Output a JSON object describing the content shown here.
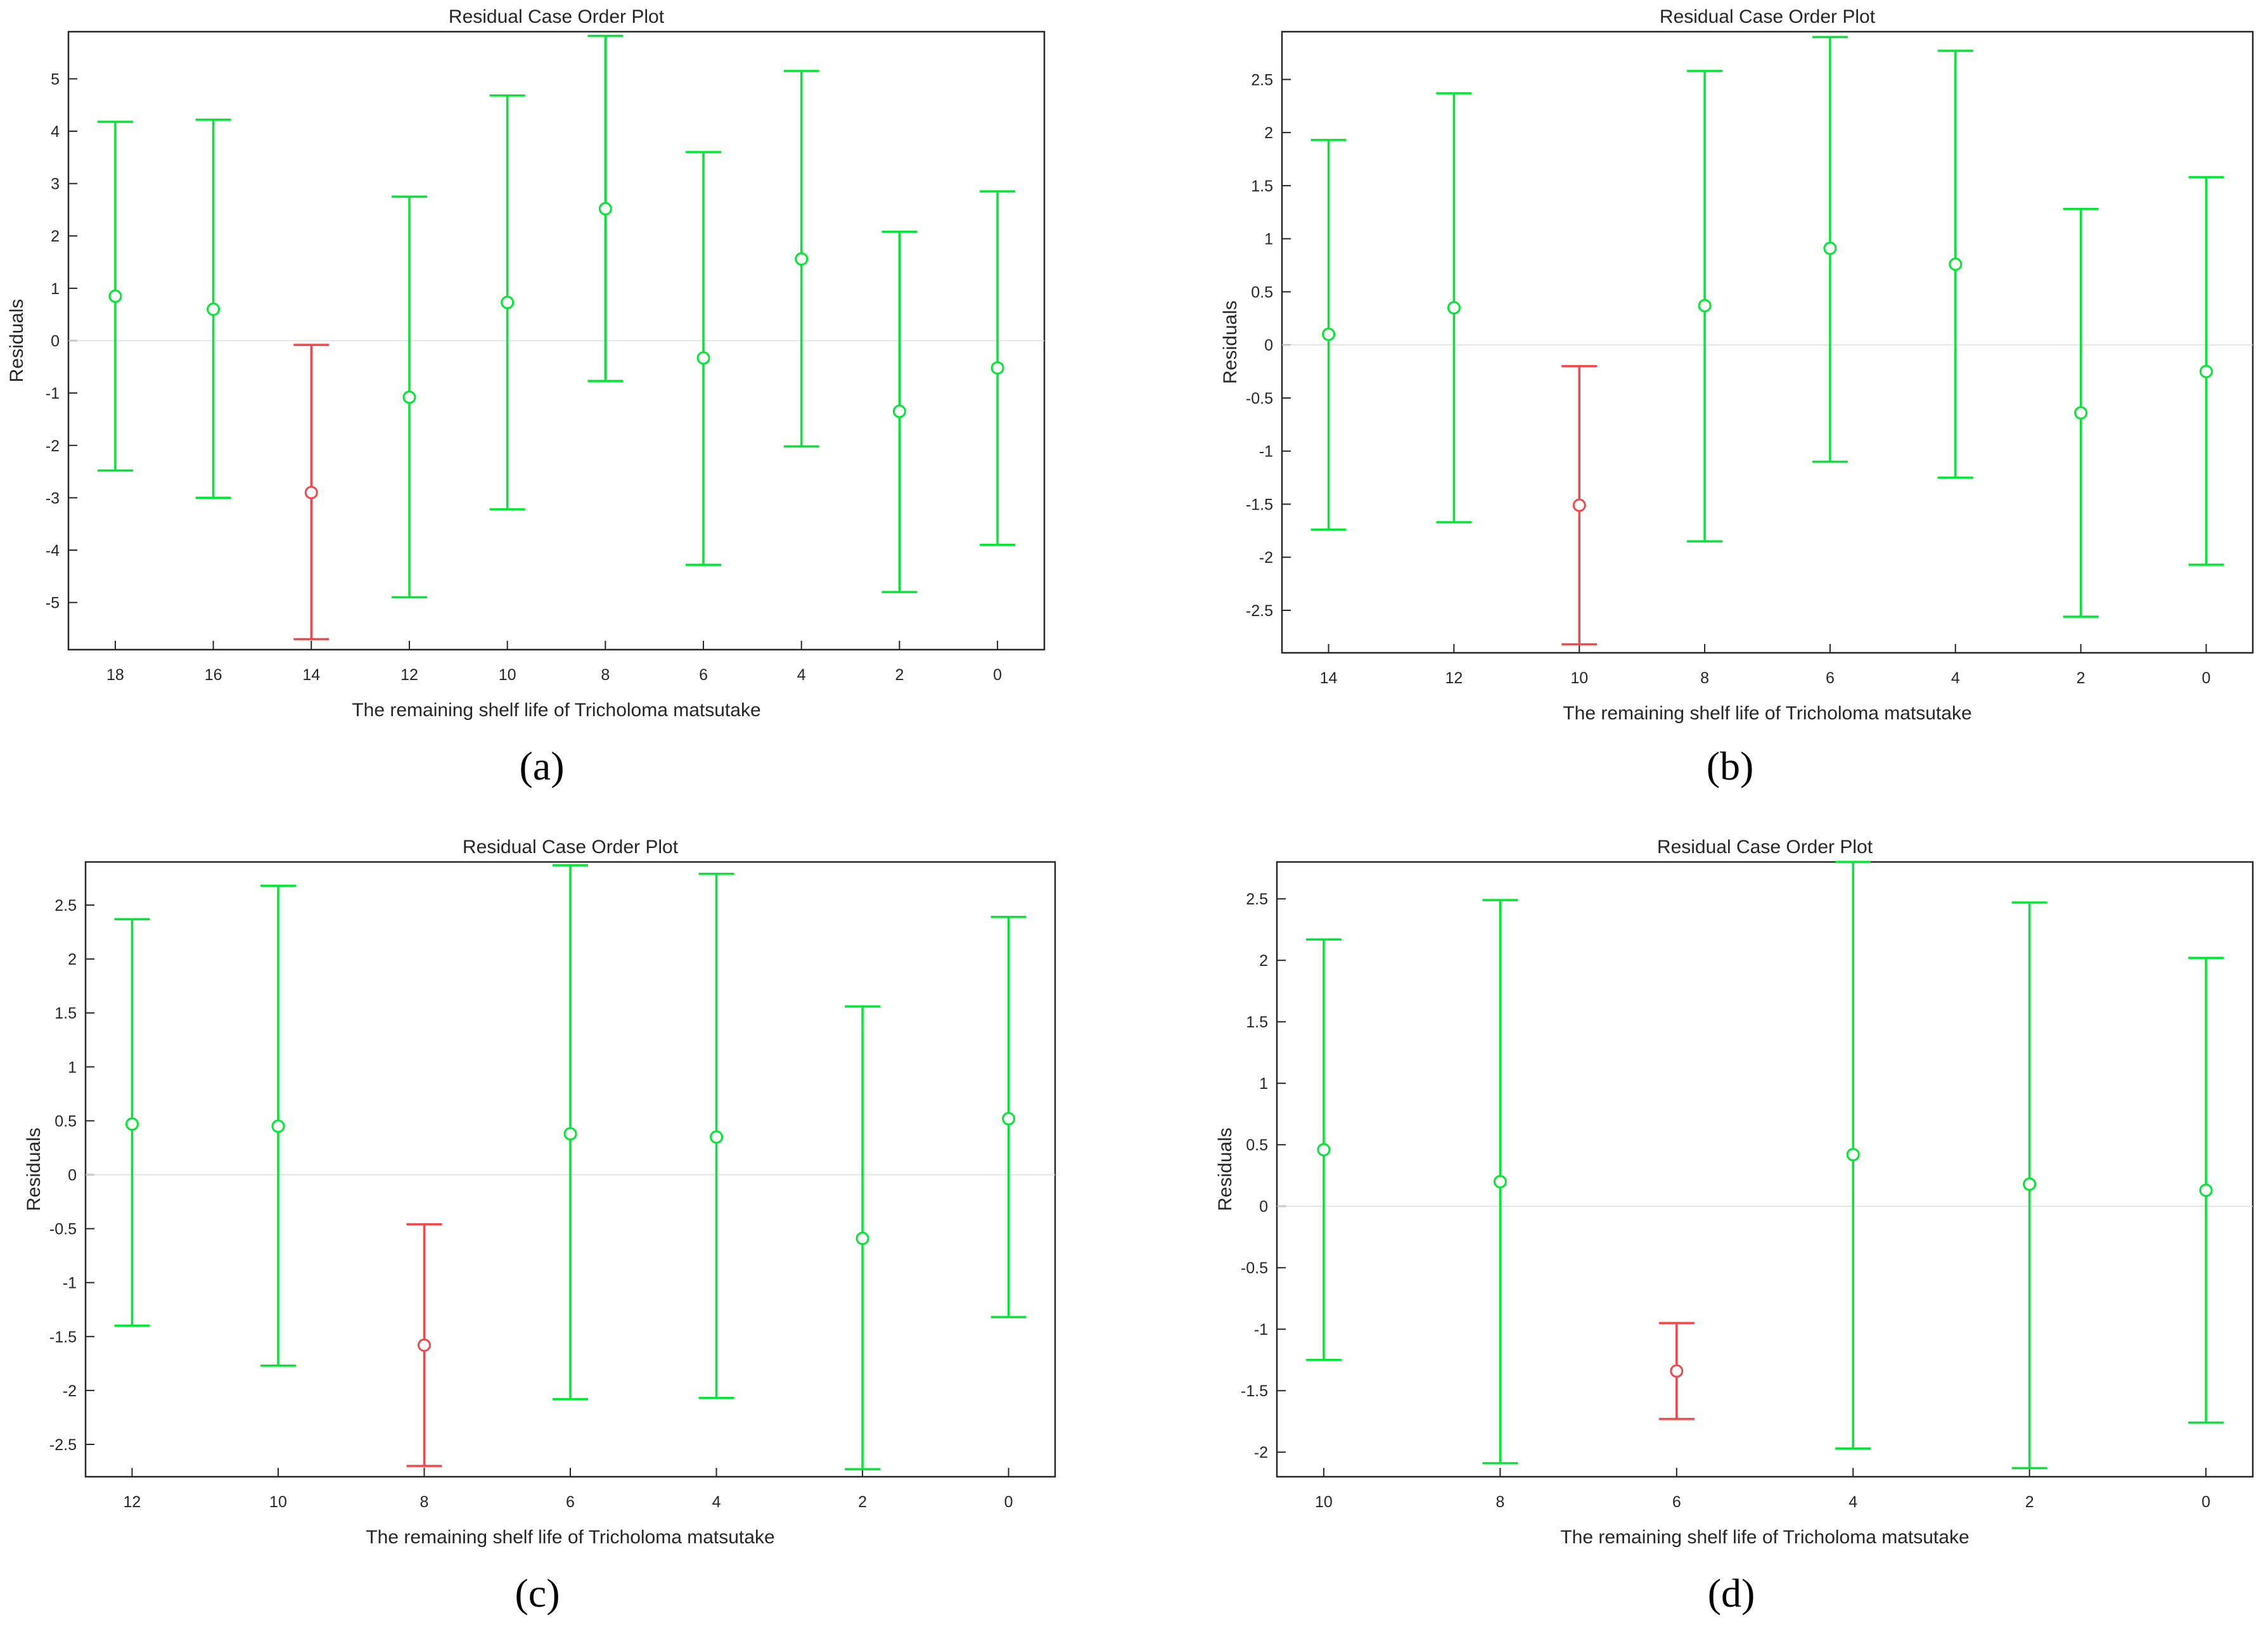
{
  "colors": {
    "ok": "#00e833",
    "outlier": "#f2474b",
    "axis": "#262626"
  },
  "chart_data": [
    {
      "panel": "(a)",
      "type": "errorbar",
      "title": "Residual Case Order Plot",
      "xlabel": "The remaining shelf life of Tricholoma matsutake",
      "ylabel": "Residuals",
      "categories": [
        "18",
        "16",
        "14",
        "12",
        "10",
        "8",
        "6",
        "4",
        "2",
        "0"
      ],
      "ylim": [
        -5.9,
        5.9
      ],
      "yticks": [
        5,
        4,
        3,
        2,
        1,
        0,
        -1,
        -2,
        -3,
        -4,
        -5
      ],
      "residuals": [
        0.85,
        0.6,
        -2.9,
        -1.08,
        0.73,
        2.52,
        -0.33,
        1.56,
        -1.35,
        -0.52
      ],
      "lower": [
        -2.48,
        -3.0,
        -5.7,
        -4.9,
        -3.22,
        -0.77,
        -4.28,
        -2.02,
        -4.8,
        -3.9
      ],
      "upper": [
        4.18,
        4.22,
        -0.08,
        2.75,
        4.68,
        5.82,
        3.6,
        5.15,
        2.08,
        2.85
      ],
      "outlier": [
        false,
        false,
        true,
        false,
        false,
        false,
        false,
        false,
        false,
        false
      ]
    },
    {
      "panel": "(b)",
      "type": "errorbar",
      "title": "Residual Case Order Plot",
      "xlabel": "The remaining shelf life of Tricholoma matsutake",
      "ylabel": "Residuals",
      "categories": [
        "14",
        "12",
        "10",
        "8",
        "6",
        "4",
        "2",
        "0"
      ],
      "ylim": [
        -2.9,
        2.95
      ],
      "yticks": [
        2.5,
        2,
        1.5,
        1,
        0.5,
        0,
        -0.5,
        -1,
        -1.5,
        -2,
        -2.5
      ],
      "residuals": [
        0.1,
        0.35,
        -1.51,
        0.37,
        0.91,
        0.76,
        -0.64,
        -0.25
      ],
      "lower": [
        -1.74,
        -1.67,
        -2.82,
        -1.85,
        -1.1,
        -1.25,
        -2.56,
        -2.07
      ],
      "upper": [
        1.93,
        2.37,
        -0.2,
        2.58,
        2.9,
        2.77,
        1.28,
        1.58
      ],
      "outlier": [
        false,
        false,
        true,
        false,
        false,
        false,
        false,
        false
      ]
    },
    {
      "panel": "(c)",
      "type": "errorbar",
      "title": "Residual Case Order Plot",
      "xlabel": "The remaining shelf life of Tricholoma matsutake",
      "ylabel": "Residuals",
      "categories": [
        "12",
        "10",
        "8",
        "6",
        "4",
        "2",
        "0"
      ],
      "ylim": [
        -2.8,
        2.9
      ],
      "yticks": [
        2.5,
        2,
        1.5,
        1,
        0.5,
        0,
        -0.5,
        -1,
        -1.5,
        -2,
        -2.5
      ],
      "residuals": [
        0.47,
        0.45,
        -1.58,
        0.38,
        0.35,
        -0.59,
        0.52
      ],
      "lower": [
        -1.4,
        -1.77,
        -2.7,
        -2.08,
        -2.07,
        -2.73,
        -1.32
      ],
      "upper": [
        2.37,
        2.68,
        -0.46,
        2.87,
        2.79,
        1.56,
        2.39
      ],
      "outlier": [
        false,
        false,
        true,
        false,
        false,
        false,
        false
      ]
    },
    {
      "panel": "(d)",
      "type": "errorbar",
      "title": "Residual Case Order Plot",
      "xlabel": "The remaining shelf life of Tricholoma matsutake",
      "ylabel": "Residuals",
      "categories": [
        "10",
        "8",
        "6",
        "4",
        "2",
        "0"
      ],
      "ylim": [
        -2.2,
        2.8
      ],
      "yticks": [
        2.5,
        2,
        1.5,
        1,
        0.5,
        0,
        -0.5,
        -1,
        -1.5,
        -2
      ],
      "residuals": [
        0.46,
        0.2,
        -1.34,
        0.42,
        0.18,
        0.13
      ],
      "lower": [
        -1.25,
        -2.09,
        -1.73,
        -1.97,
        -2.13,
        -1.76
      ],
      "upper": [
        2.17,
        2.49,
        -0.95,
        2.8,
        2.47,
        2.02
      ],
      "outlier": [
        false,
        false,
        true,
        false,
        false,
        false
      ]
    }
  ]
}
